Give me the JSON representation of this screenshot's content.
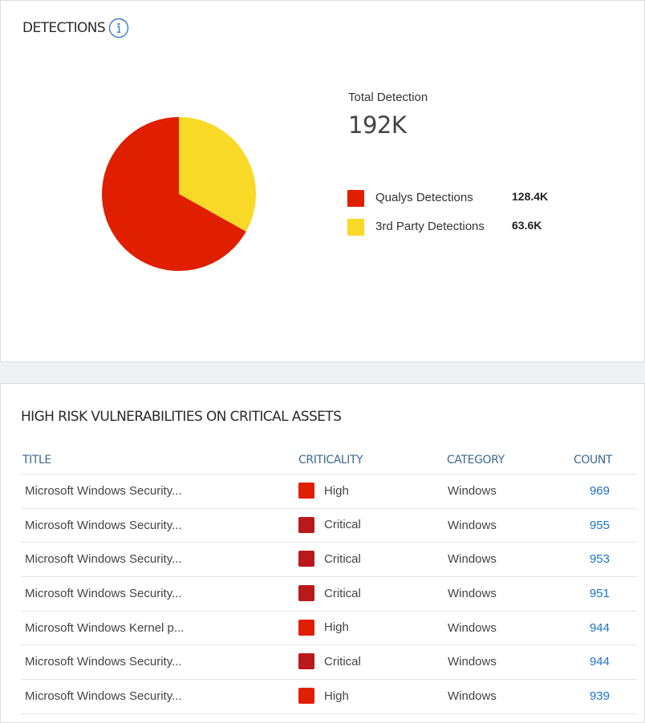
{
  "detections": {
    "title": "DETECTIONS",
    "total_label": "Total Detection",
    "total_value": "192K",
    "legend": [
      {
        "label": "Qualys Detections",
        "value": "128.4K",
        "color": "#e01e00"
      },
      {
        "label": "3rd Party Detections",
        "value": "63.6K",
        "color": "#f9d927"
      }
    ],
    "icon": "info-icon"
  },
  "chart_data": {
    "type": "pie",
    "categories": [
      "Qualys Detections",
      "3rd Party Detections"
    ],
    "values": [
      128.4,
      63.6
    ],
    "unit": "K",
    "colors": [
      "#e01e00",
      "#f9d927"
    ]
  },
  "vulnerabilities": {
    "title": "HIGH RISK VULNERABILITIES ON CRITICAL ASSETS",
    "columns": [
      "TITLE",
      "CRITICALITY",
      "CATEGORY",
      "COUNT"
    ],
    "criticality_colors": {
      "High": "#e01e00",
      "Critical": "#b8191a"
    },
    "rows": [
      {
        "title": "Microsoft Windows Security...",
        "criticality": "High",
        "category": "Windows",
        "count": "969"
      },
      {
        "title": "Microsoft Windows Security...",
        "criticality": "Critical",
        "category": "Windows",
        "count": "955"
      },
      {
        "title": "Microsoft Windows Security...",
        "criticality": "Critical",
        "category": "Windows",
        "count": "953"
      },
      {
        "title": "Microsoft Windows Security...",
        "criticality": "Critical",
        "category": "Windows",
        "count": "951"
      },
      {
        "title": "Microsoft Windows Kernel p...",
        "criticality": "High",
        "category": "Windows",
        "count": "944"
      },
      {
        "title": "Microsoft Windows Security...",
        "criticality": "Critical",
        "category": "Windows",
        "count": "944"
      },
      {
        "title": "Microsoft Windows Security...",
        "criticality": "High",
        "category": "Windows",
        "count": "939"
      }
    ]
  }
}
